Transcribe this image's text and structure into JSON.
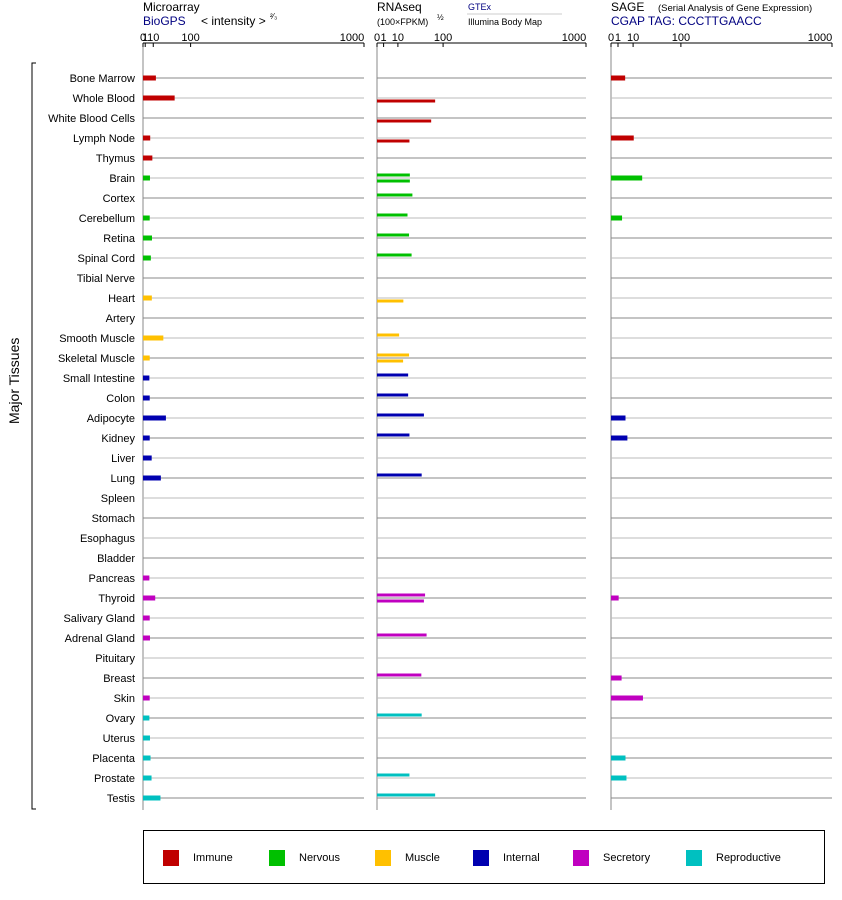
{
  "headers": {
    "microarray": {
      "title": "Microarray",
      "source": "BioGPS",
      "unit": "< intensity >",
      "unit_exp": "²⁄₃"
    },
    "rnaseq": {
      "title": "RNAseq",
      "unit": "(100×FPKM)",
      "unit_exp": "½",
      "source1": "GTEx",
      "source2": "Illumina Body Map"
    },
    "sage": {
      "title": "SAGE",
      "subtitle": "(Serial Analysis of Gene Expression)",
      "tag": "CGAP TAG: CCCTTGAACC"
    }
  },
  "y_axis_label": "Major Tissues",
  "legend": [
    {
      "label": "Immune",
      "color": "#c00000"
    },
    {
      "label": "Nervous",
      "color": "#00c000"
    },
    {
      "label": "Muscle",
      "color": "#ffc000"
    },
    {
      "label": "Internal",
      "color": "#0000b0"
    },
    {
      "label": "Secretory",
      "color": "#c000c0"
    },
    {
      "label": "Reproductive",
      "color": "#00c0c0"
    }
  ],
  "chart_data": {
    "type": "bar",
    "scale": "power",
    "exponent_microarray": 0.6667,
    "exponent_rnaseq": 0.5,
    "exponent_sage": 0.5,
    "x_ticks": [
      "0",
      "1",
      "10",
      "100",
      "1000"
    ],
    "xlim": [
      0,
      1000
    ],
    "categories": [
      "Bone Marrow",
      "Whole Blood",
      "White Blood Cells",
      "Lymph Node",
      "Thymus",
      "Brain",
      "Cortex",
      "Cerebellum",
      "Retina",
      "Spinal Cord",
      "Tibial Nerve",
      "Heart",
      "Artery",
      "Smooth Muscle",
      "Skeletal Muscle",
      "Small Intestine",
      "Colon",
      "Adipocyte",
      "Kidney",
      "Liver",
      "Lung",
      "Spleen",
      "Stomach",
      "Esophagus",
      "Bladder",
      "Pancreas",
      "Thyroid",
      "Salivary Gland",
      "Adrenal Gland",
      "Pituitary",
      "Breast",
      "Skin",
      "Ovary",
      "Uterus",
      "Placenta",
      "Prostate",
      "Testis"
    ],
    "system": [
      "Immune",
      "Immune",
      "Immune",
      "Immune",
      "Immune",
      "Nervous",
      "Nervous",
      "Nervous",
      "Nervous",
      "Nervous",
      "Nervous",
      "Muscle",
      "Muscle",
      "Muscle",
      "Muscle",
      "Internal",
      "Internal",
      "Internal",
      "Internal",
      "Internal",
      "Internal",
      "Internal",
      "Internal",
      "Internal",
      "Internal",
      "Secretory",
      "Secretory",
      "Secretory",
      "Secretory",
      "Secretory",
      "Secretory",
      "Secretory",
      "Reproductive",
      "Reproductive",
      "Reproductive",
      "Reproductive",
      "Reproductive"
    ],
    "series": [
      {
        "name": "Microarray",
        "values": [
          14.1,
          54.2,
          null,
          5.9,
          8.7,
          5.6,
          null,
          5.3,
          8.2,
          6.7,
          null,
          8.0,
          null,
          27.9,
          5.3,
          4.9,
          5.3,
          33.4,
          5.3,
          7.8,
          23.0,
          null,
          null,
          null,
          null,
          4.9,
          13.0,
          5.3,
          5.6,
          null,
          null,
          5.3,
          4.9,
          5.6,
          6.3,
          7.6,
          22.2
        ]
      },
      {
        "name": "GTEx",
        "values": [
          null,
          null,
          null,
          null,
          null,
          24.7,
          28.7,
          21.3,
          23.5,
          27.4,
          null,
          null,
          null,
          11.2,
          23.5,
          22.2,
          22.2,
          50.4,
          24.1,
          null,
          45.7,
          null,
          null,
          null,
          null,
          null,
          52.9,
          null,
          56.3,
          null,
          45.0,
          null,
          45.7,
          null,
          null,
          24.1,
          77.4
        ]
      },
      {
        "name": "Illumina Body Map",
        "values": [
          null,
          77.4,
          67.2,
          24.1,
          null,
          24.7,
          null,
          null,
          null,
          null,
          null,
          15.9,
          null,
          null,
          15.6,
          null,
          null,
          null,
          null,
          null,
          null,
          null,
          null,
          null,
          null,
          null,
          50.4,
          null,
          null,
          null,
          null,
          null,
          null,
          null,
          null,
          null,
          null
        ]
      },
      {
        "name": "SAGE",
        "values": [
          4.1,
          null,
          null,
          10.6,
          null,
          19.9,
          null,
          2.5,
          null,
          null,
          null,
          null,
          null,
          null,
          null,
          null,
          null,
          4.3,
          5.5,
          null,
          null,
          null,
          null,
          null,
          null,
          null,
          1.2,
          null,
          null,
          null,
          2.3,
          20.9,
          null,
          null,
          4.3,
          4.9,
          null
        ]
      }
    ]
  }
}
